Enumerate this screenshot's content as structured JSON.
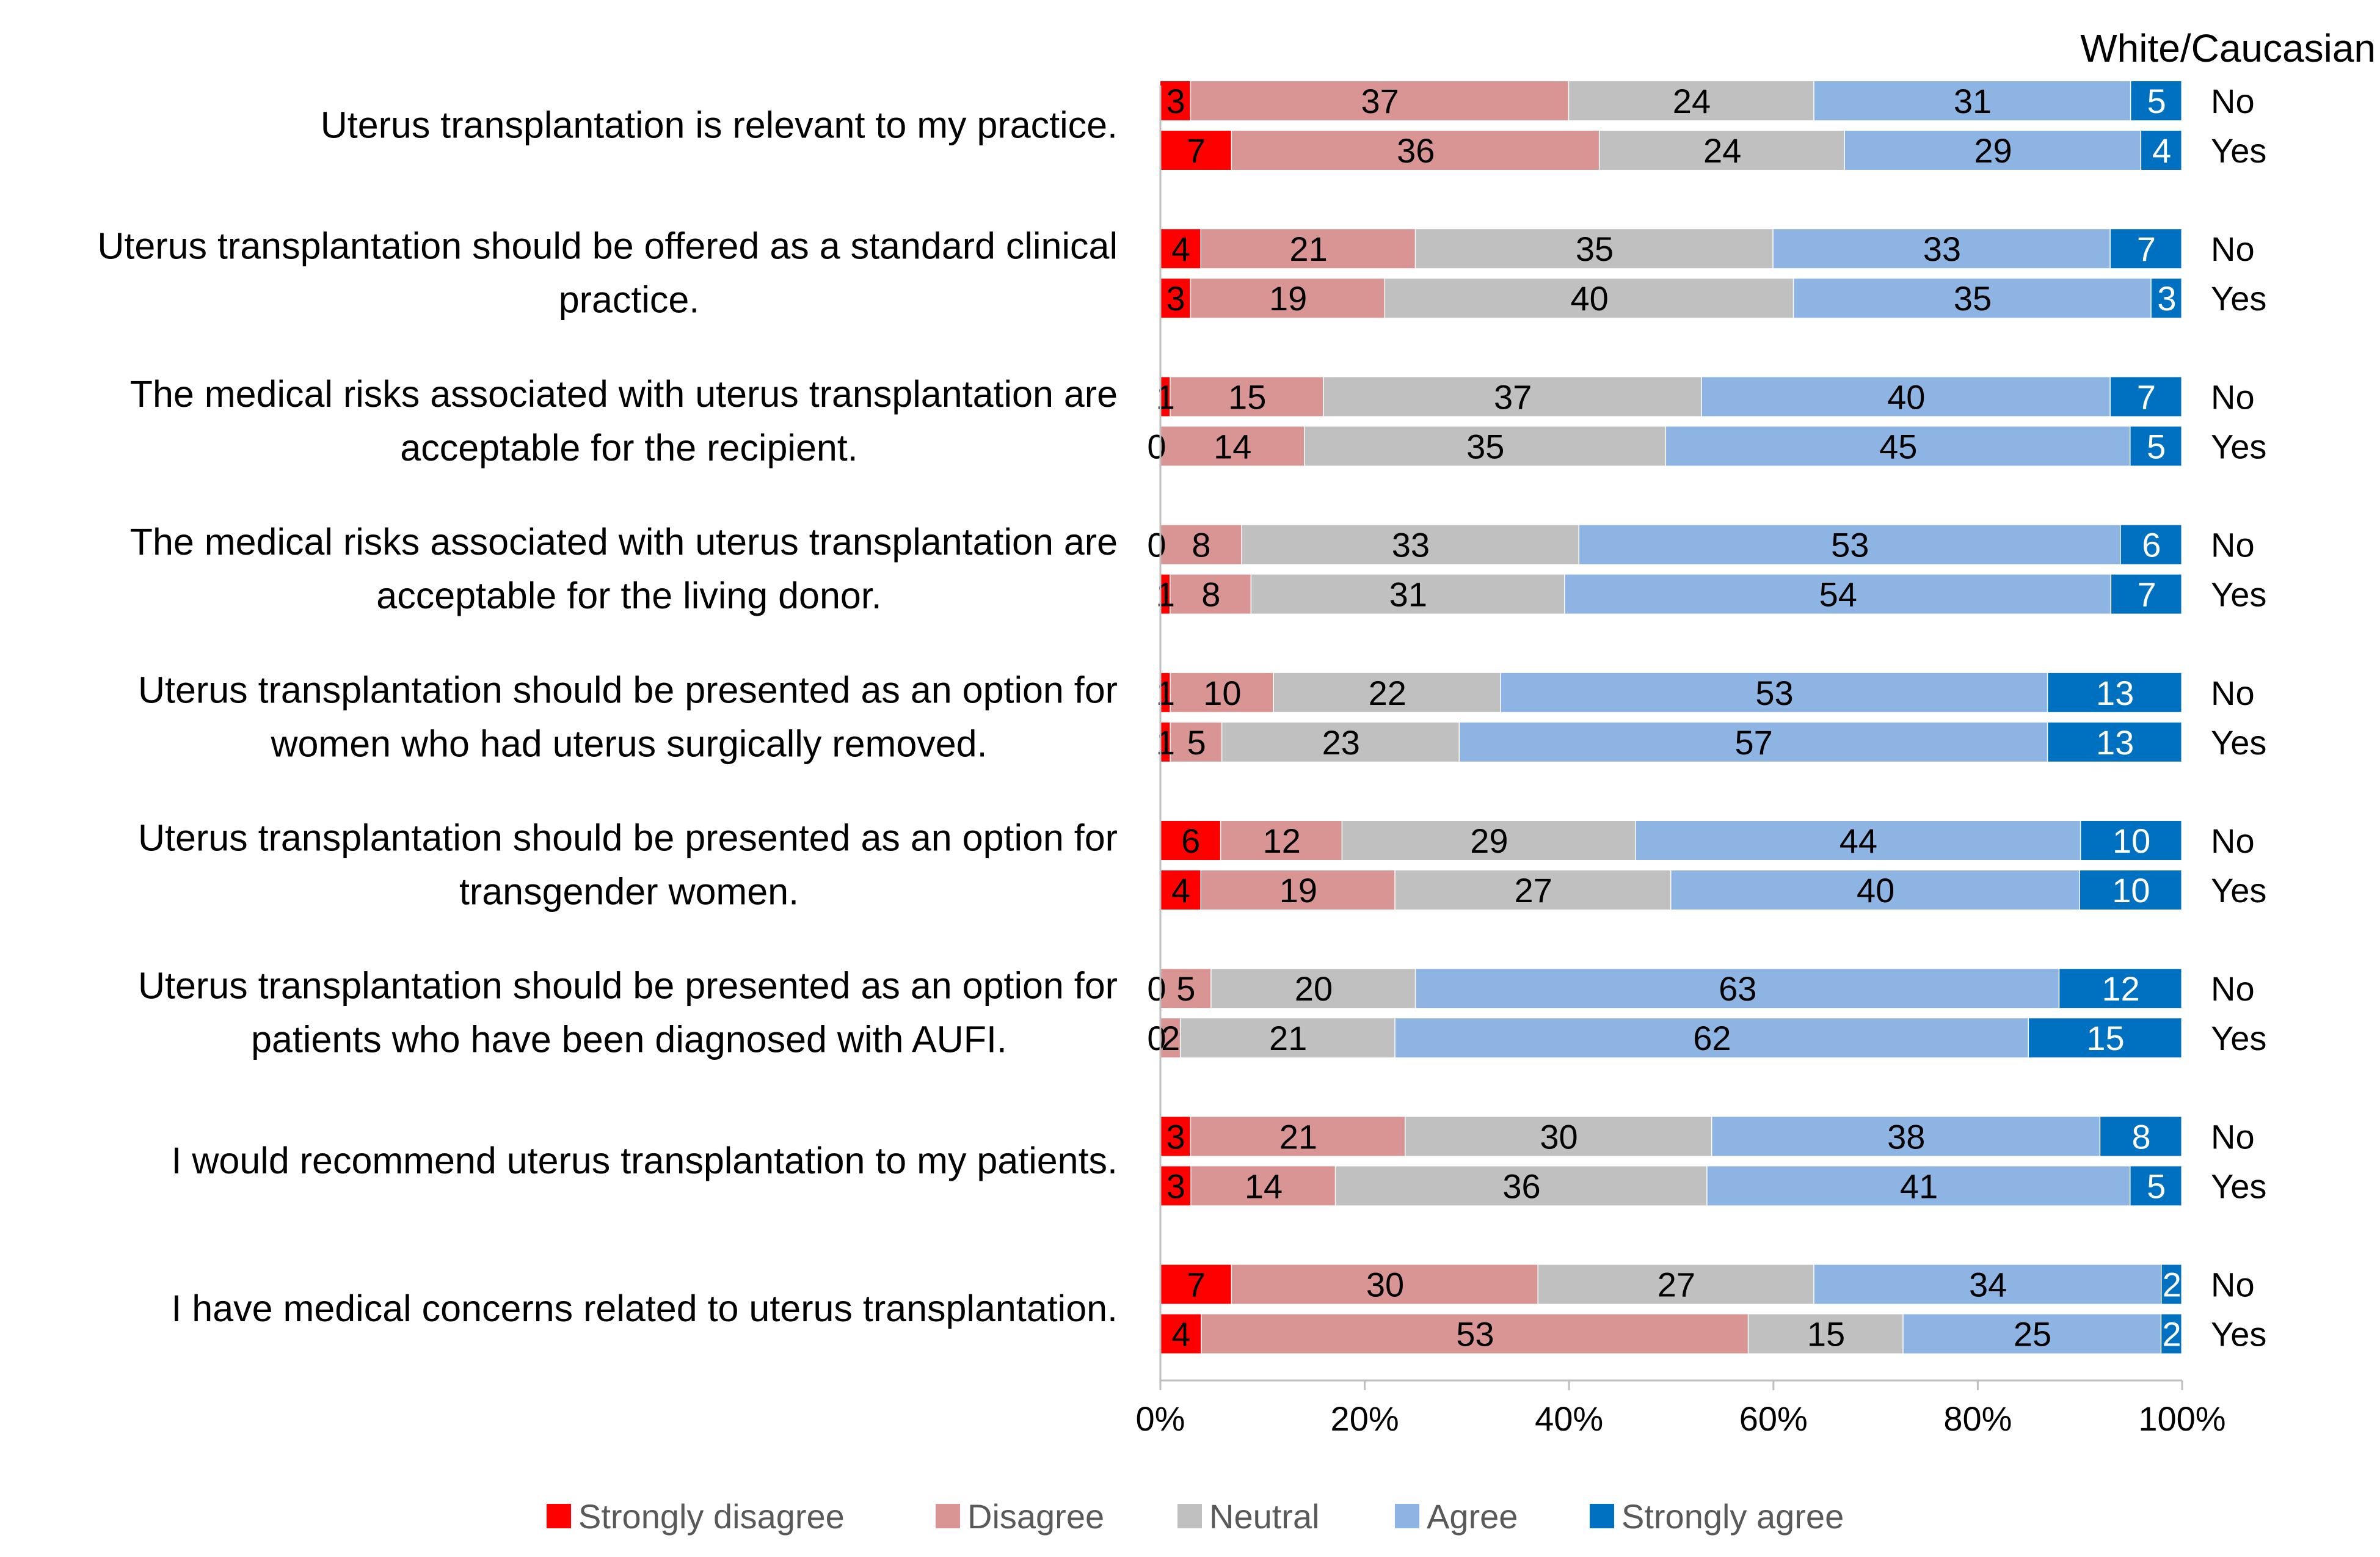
{
  "chart_data": {
    "type": "bar",
    "orientation": "horizontal",
    "stacked": "percent",
    "title": "White/Caucasian",
    "xlabel": "",
    "ylabel": "",
    "xlim": [
      0,
      100
    ],
    "xticks": [
      "0%",
      "20%",
      "40%",
      "60%",
      "80%",
      "100%"
    ],
    "grid": false,
    "legend_position": "bottom",
    "series": [
      {
        "name": "Strongly disagree",
        "color": "#ff0000"
      },
      {
        "name": "Disagree",
        "color": "#d99594"
      },
      {
        "name": "Neutral",
        "color": "#c0c0c0"
      },
      {
        "name": "Agree",
        "color": "#8db4e2"
      },
      {
        "name": "Strongly agree",
        "color": "#0070c0"
      }
    ],
    "questions": [
      {
        "label": [
          "Uterus transplantation is relevant to my practice."
        ],
        "rows": [
          {
            "group": "No",
            "values": [
              3,
              37,
              24,
              31,
              5
            ]
          },
          {
            "group": "Yes",
            "values": [
              7,
              36,
              24,
              29,
              4
            ]
          }
        ]
      },
      {
        "label": [
          "Uterus transplantation should be offered as a standard clinical",
          "practice."
        ],
        "rows": [
          {
            "group": "No",
            "values": [
              4,
              21,
              35,
              33,
              7
            ]
          },
          {
            "group": "Yes",
            "values": [
              3,
              19,
              40,
              35,
              3
            ]
          }
        ]
      },
      {
        "label": [
          "The medical risks associated with uterus transplantation are",
          "acceptable for the recipient."
        ],
        "rows": [
          {
            "group": "No",
            "values": [
              1,
              15,
              37,
              40,
              7
            ]
          },
          {
            "group": "Yes",
            "values": [
              0,
              14,
              35,
              45,
              5
            ]
          }
        ]
      },
      {
        "label": [
          "The medical risks associated with uterus transplantation are",
          "acceptable for the living donor."
        ],
        "rows": [
          {
            "group": "No",
            "values": [
              0,
              8,
              33,
              53,
              6
            ]
          },
          {
            "group": "Yes",
            "values": [
              1,
              8,
              31,
              54,
              7
            ]
          }
        ]
      },
      {
        "label": [
          "Uterus transplantation should be presented as an option for",
          "women who had uterus surgically removed."
        ],
        "rows": [
          {
            "group": "No",
            "values": [
              1,
              10,
              22,
              53,
              13
            ]
          },
          {
            "group": "Yes",
            "values": [
              1,
              5,
              23,
              57,
              13
            ]
          }
        ]
      },
      {
        "label": [
          "Uterus transplantation should be presented as an option for",
          "transgender women."
        ],
        "rows": [
          {
            "group": "No",
            "values": [
              6,
              12,
              29,
              44,
              10
            ]
          },
          {
            "group": "Yes",
            "values": [
              4,
              19,
              27,
              40,
              10
            ]
          }
        ]
      },
      {
        "label": [
          "Uterus transplantation should be presented as an option for",
          "patients who have been diagnosed with AUFI."
        ],
        "rows": [
          {
            "group": "No",
            "values": [
              0,
              5,
              20,
              63,
              12
            ]
          },
          {
            "group": "Yes",
            "values": [
              0,
              2,
              21,
              62,
              15
            ]
          }
        ]
      },
      {
        "label": [
          "I would recommend uterus transplantation to my patients."
        ],
        "rows": [
          {
            "group": "No",
            "values": [
              3,
              21,
              30,
              38,
              8
            ]
          },
          {
            "group": "Yes",
            "values": [
              3,
              14,
              36,
              41,
              5
            ]
          }
        ]
      },
      {
        "label": [
          "I have medical concerns related to uterus transplantation."
        ],
        "rows": [
          {
            "group": "No",
            "values": [
              7,
              30,
              27,
              34,
              2
            ]
          },
          {
            "group": "Yes",
            "values": [
              4,
              53,
              15,
              25,
              2
            ]
          }
        ]
      }
    ]
  }
}
